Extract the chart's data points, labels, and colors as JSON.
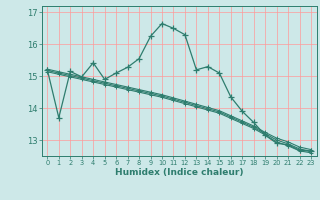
{
  "xlabel": "Humidex (Indice chaleur)",
  "background_color": "#cde8e8",
  "grid_color": "#ff9999",
  "line_color": "#2e7d6e",
  "xlim": [
    -0.5,
    23.5
  ],
  "ylim": [
    12.5,
    17.2
  ],
  "yticks": [
    13,
    14,
    15,
    16,
    17
  ],
  "xticks": [
    0,
    1,
    2,
    3,
    4,
    5,
    6,
    7,
    8,
    9,
    10,
    11,
    12,
    13,
    14,
    15,
    16,
    17,
    18,
    19,
    20,
    21,
    22,
    23
  ],
  "series0_x": [
    0,
    1,
    2,
    3,
    4,
    5,
    6,
    7,
    8,
    9,
    10,
    11,
    12,
    13,
    14,
    15,
    16,
    17,
    18,
    19,
    20,
    21,
    22,
    23
  ],
  "series0_y": [
    15.2,
    13.7,
    15.15,
    14.98,
    15.42,
    14.9,
    15.1,
    15.28,
    15.55,
    16.25,
    16.65,
    16.5,
    16.3,
    15.2,
    15.3,
    15.1,
    14.35,
    13.9,
    13.55,
    13.15,
    12.9,
    12.85,
    12.68,
    12.65
  ],
  "linear_lines": [
    {
      "x": [
        0,
        1,
        2,
        3,
        4,
        5,
        6,
        7,
        8,
        9,
        10,
        11,
        12,
        13,
        14,
        15,
        16,
        17,
        18,
        19,
        20,
        21,
        22,
        23
      ],
      "y": [
        15.18,
        15.1,
        15.02,
        14.94,
        14.86,
        14.78,
        14.7,
        14.62,
        14.54,
        14.46,
        14.38,
        14.28,
        14.18,
        14.08,
        13.98,
        13.88,
        13.72,
        13.56,
        13.4,
        13.2,
        13.0,
        12.88,
        12.72,
        12.65
      ]
    },
    {
      "x": [
        0,
        1,
        2,
        3,
        4,
        5,
        6,
        7,
        8,
        9,
        10,
        11,
        12,
        13,
        14,
        15,
        16,
        17,
        18,
        19,
        20,
        21,
        22,
        23
      ],
      "y": [
        15.22,
        15.14,
        15.06,
        14.98,
        14.9,
        14.82,
        14.74,
        14.66,
        14.58,
        14.5,
        14.42,
        14.32,
        14.22,
        14.12,
        14.02,
        13.92,
        13.76,
        13.6,
        13.44,
        13.24,
        13.06,
        12.94,
        12.78,
        12.7
      ]
    },
    {
      "x": [
        0,
        1,
        2,
        3,
        4,
        5,
        6,
        7,
        8,
        9,
        10,
        11,
        12,
        13,
        14,
        15,
        16,
        17,
        18,
        19,
        20,
        21,
        22,
        23
      ],
      "y": [
        15.14,
        15.06,
        14.98,
        14.9,
        14.82,
        14.74,
        14.66,
        14.58,
        14.5,
        14.42,
        14.34,
        14.24,
        14.14,
        14.04,
        13.94,
        13.84,
        13.68,
        13.52,
        13.36,
        13.16,
        12.94,
        12.82,
        12.66,
        12.6
      ]
    }
  ]
}
